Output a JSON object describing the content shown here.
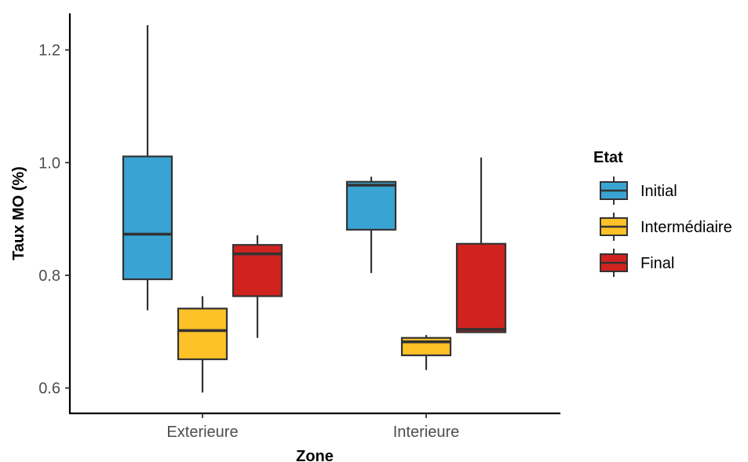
{
  "chart_data": {
    "type": "box",
    "xlabel": "Zone",
    "ylabel": "Taux MO (%)",
    "categories": [
      "Exterieure",
      "Interieure"
    ],
    "y_ticks": [
      {
        "value": 0.6,
        "label": "0.6"
      },
      {
        "value": 0.8,
        "label": "0.8"
      },
      {
        "value": 1.0,
        "label": "1.0"
      },
      {
        "value": 1.2,
        "label": "1.2"
      }
    ],
    "ylim": [
      0.555,
      1.265
    ],
    "legend": {
      "title": "Etat",
      "position": "right"
    },
    "series": [
      {
        "name": "Initial",
        "color": "#39a4d3",
        "boxes": [
          {
            "category": "Exterieure",
            "min": 0.738,
            "q1": 0.793,
            "median": 0.873,
            "q3": 1.011,
            "max": 1.244
          },
          {
            "category": "Interieure",
            "min": 0.804,
            "q1": 0.881,
            "median": 0.96,
            "q3": 0.966,
            "max": 0.975
          }
        ]
      },
      {
        "name": "Intermédiaire",
        "color": "#fec127",
        "boxes": [
          {
            "category": "Exterieure",
            "min": 0.592,
            "q1": 0.651,
            "median": 0.702,
            "q3": 0.741,
            "max": 0.763
          },
          {
            "category": "Interieure",
            "min": 0.632,
            "q1": 0.658,
            "median": 0.682,
            "q3": 0.689,
            "max": 0.694
          }
        ]
      },
      {
        "name": "Final",
        "color": "#d0231f",
        "boxes": [
          {
            "category": "Exterieure",
            "min": 0.689,
            "q1": 0.763,
            "median": 0.838,
            "q3": 0.854,
            "max": 0.871
          },
          {
            "category": "Interieure",
            "min": 0.698,
            "q1": 0.699,
            "median": 0.704,
            "q3": 0.856,
            "max": 1.009
          }
        ]
      }
    ]
  }
}
